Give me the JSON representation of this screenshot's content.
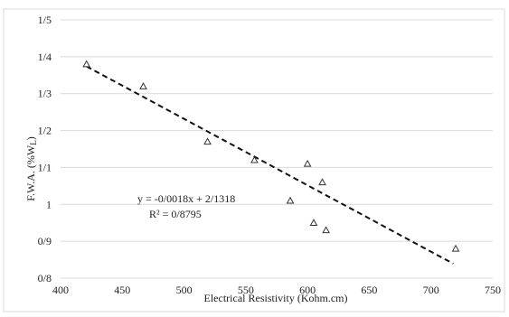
{
  "chart_data": {
    "type": "scatter",
    "title": "",
    "xlabel": "Electrical Resistivity (Kohm.cm)",
    "ylabel": "F.W.A. (%W",
    "ylabel_subscript": "L",
    "ylabel_suffix": ")",
    "xlim": [
      400,
      750
    ],
    "ylim": [
      0.8,
      1.5
    ],
    "x_ticks": [
      400,
      450,
      500,
      550,
      600,
      650,
      700,
      750
    ],
    "x_tick_labels": [
      "400",
      "450",
      "500",
      "550",
      "600",
      "650",
      "700",
      "750"
    ],
    "y_ticks": [
      0.8,
      0.9,
      1.0,
      1.1,
      1.2,
      1.3,
      1.4,
      1.5
    ],
    "y_tick_labels": [
      "0/8",
      "0/9",
      "1",
      "1/1",
      "1/2",
      "1/3",
      "1/4",
      "1/5"
    ],
    "grid": true,
    "marker": "triangle-open",
    "x": [
      421,
      467,
      519,
      557,
      586,
      600,
      612,
      605,
      615,
      720
    ],
    "y": [
      1.38,
      1.32,
      1.17,
      1.12,
      1.01,
      1.11,
      1.06,
      0.95,
      0.93,
      0.88
    ],
    "trendline": {
      "slope": -0.0018,
      "intercept": 2.1318,
      "x_range": [
        421,
        718
      ],
      "style": "dashed"
    },
    "annotations": [
      "y = -0/0018x + 2/1318",
      "R² = 0/8795"
    ],
    "colors": {
      "grid": "#d9d9d9",
      "marker": "#333333",
      "trend": "#111111"
    }
  }
}
